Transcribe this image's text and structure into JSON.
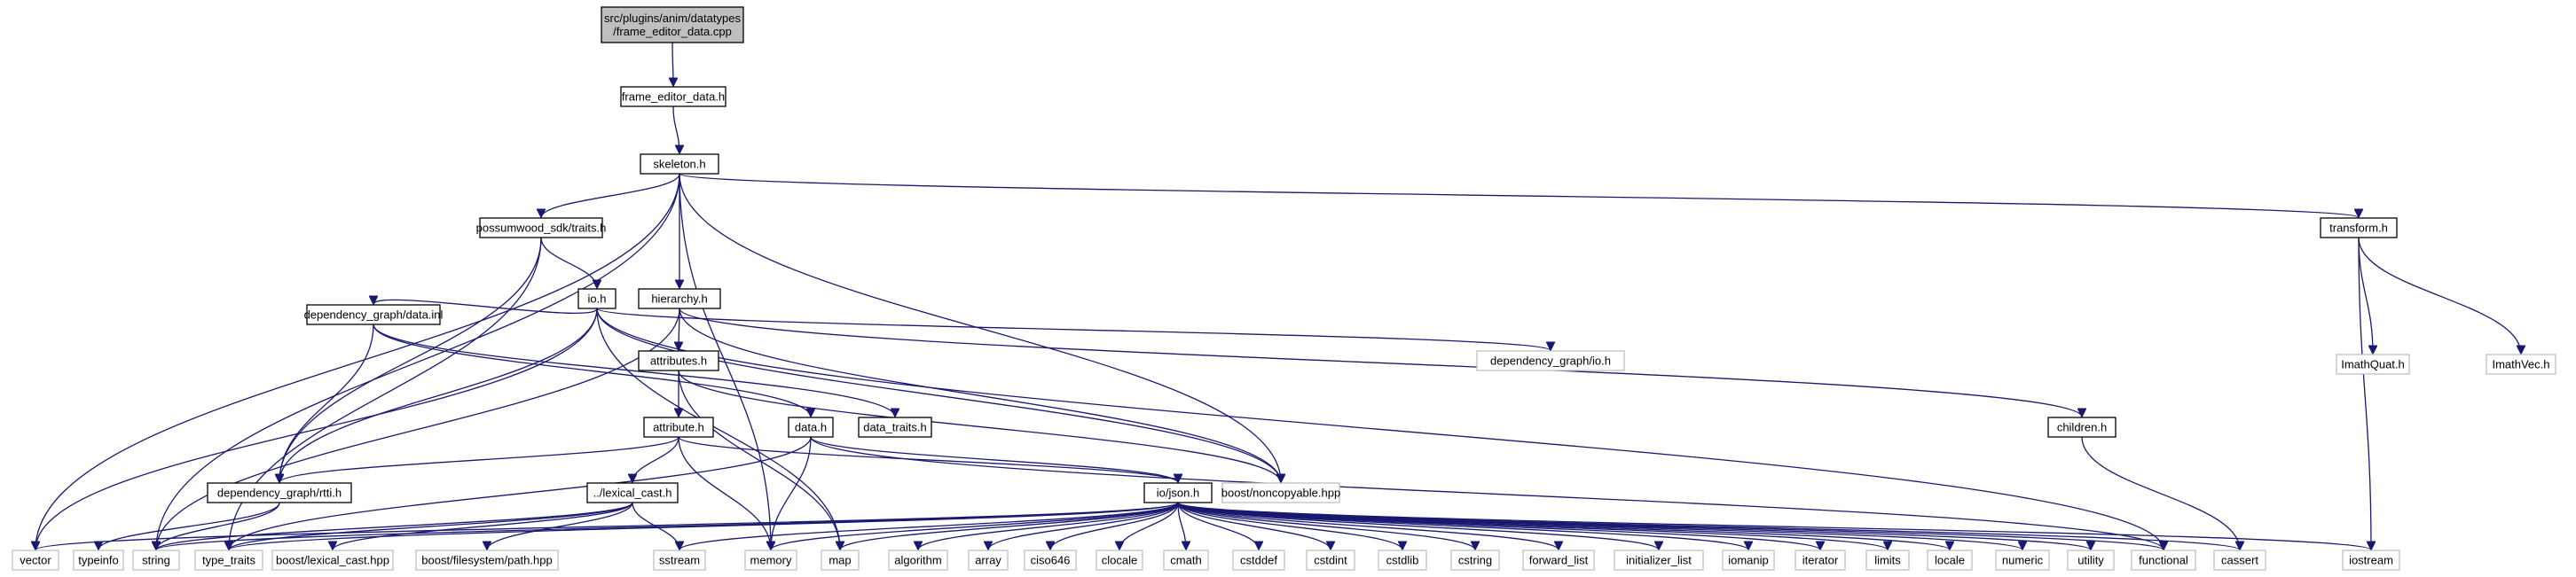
{
  "colors": {
    "edge": "#191970",
    "root_fill": "#bfbfbf",
    "external_stroke": "#bfbfbf",
    "internal_stroke": "#000000"
  },
  "nodes": [
    {
      "id": "root",
      "kind": "root",
      "lines": [
        "src/plugins/anim/datatypes",
        "/frame_editor_data.cpp"
      ]
    },
    {
      "id": "frame_editor_data_h",
      "kind": "internal",
      "lines": [
        "frame_editor_data.h"
      ]
    },
    {
      "id": "skeleton_h",
      "kind": "internal",
      "lines": [
        "skeleton.h"
      ]
    },
    {
      "id": "possumwood_sdk_traits_h",
      "kind": "internal",
      "lines": [
        "possumwood_sdk/traits.h"
      ]
    },
    {
      "id": "transform_h",
      "kind": "internal",
      "lines": [
        "transform.h"
      ]
    },
    {
      "id": "io_h",
      "kind": "internal",
      "lines": [
        "io.h"
      ]
    },
    {
      "id": "hierarchy_h",
      "kind": "internal",
      "lines": [
        "hierarchy.h"
      ]
    },
    {
      "id": "imath_quat_h",
      "kind": "external",
      "lines": [
        "ImathQuat.h"
      ]
    },
    {
      "id": "imath_vec_h",
      "kind": "external",
      "lines": [
        "ImathVec.h"
      ]
    },
    {
      "id": "dependency_graph_data_inl",
      "kind": "internal",
      "lines": [
        "dependency_graph/data.inl"
      ]
    },
    {
      "id": "dependency_graph_io_h",
      "kind": "external",
      "lines": [
        "dependency_graph/io.h"
      ]
    },
    {
      "id": "attributes_h",
      "kind": "internal",
      "lines": [
        "attributes.h"
      ]
    },
    {
      "id": "data_traits_h",
      "kind": "internal",
      "lines": [
        "data_traits.h"
      ]
    },
    {
      "id": "attribute_h",
      "kind": "internal",
      "lines": [
        "attribute.h"
      ]
    },
    {
      "id": "data_h",
      "kind": "internal",
      "lines": [
        "data.h"
      ]
    },
    {
      "id": "children_h",
      "kind": "internal",
      "lines": [
        "children.h"
      ]
    },
    {
      "id": "dependency_graph_rtti_h",
      "kind": "internal",
      "lines": [
        "dependency_graph/rtti.h"
      ]
    },
    {
      "id": "lexical_cast_h",
      "kind": "internal",
      "lines": [
        "../lexical_cast.h"
      ]
    },
    {
      "id": "boost_noncopyable_hpp",
      "kind": "external",
      "lines": [
        "boost/noncopyable.hpp"
      ]
    },
    {
      "id": "io_json_h",
      "kind": "internal",
      "lines": [
        "io/json.h"
      ]
    },
    {
      "id": "vector",
      "kind": "external",
      "lines": [
        "vector"
      ]
    },
    {
      "id": "typeinfo",
      "kind": "external",
      "lines": [
        "typeinfo"
      ]
    },
    {
      "id": "string",
      "kind": "external",
      "lines": [
        "string"
      ]
    },
    {
      "id": "type_traits",
      "kind": "external",
      "lines": [
        "type_traits"
      ]
    },
    {
      "id": "boost_lexical_cast_hpp",
      "kind": "external",
      "lines": [
        "boost/lexical_cast.hpp"
      ]
    },
    {
      "id": "boost_filesystem_path_hpp",
      "kind": "external",
      "lines": [
        "boost/filesystem/path.hpp"
      ]
    },
    {
      "id": "sstream",
      "kind": "external",
      "lines": [
        "sstream"
      ]
    },
    {
      "id": "memory",
      "kind": "external",
      "lines": [
        "memory"
      ]
    },
    {
      "id": "map",
      "kind": "external",
      "lines": [
        "map"
      ]
    },
    {
      "id": "algorithm",
      "kind": "external",
      "lines": [
        "algorithm"
      ]
    },
    {
      "id": "array",
      "kind": "external",
      "lines": [
        "array"
      ]
    },
    {
      "id": "ciso646",
      "kind": "external",
      "lines": [
        "ciso646"
      ]
    },
    {
      "id": "clocale",
      "kind": "external",
      "lines": [
        "clocale"
      ]
    },
    {
      "id": "cmath",
      "kind": "external",
      "lines": [
        "cmath"
      ]
    },
    {
      "id": "cstddef",
      "kind": "external",
      "lines": [
        "cstddef"
      ]
    },
    {
      "id": "cstdint",
      "kind": "external",
      "lines": [
        "cstdint"
      ]
    },
    {
      "id": "cstdlib",
      "kind": "external",
      "lines": [
        "cstdlib"
      ]
    },
    {
      "id": "cstring",
      "kind": "external",
      "lines": [
        "cstring"
      ]
    },
    {
      "id": "forward_list",
      "kind": "external",
      "lines": [
        "forward_list"
      ]
    },
    {
      "id": "initializer_list",
      "kind": "external",
      "lines": [
        "initializer_list"
      ]
    },
    {
      "id": "iomanip",
      "kind": "external",
      "lines": [
        "iomanip"
      ]
    },
    {
      "id": "iterator",
      "kind": "external",
      "lines": [
        "iterator"
      ]
    },
    {
      "id": "limits",
      "kind": "external",
      "lines": [
        "limits"
      ]
    },
    {
      "id": "locale",
      "kind": "external",
      "lines": [
        "locale"
      ]
    },
    {
      "id": "numeric",
      "kind": "external",
      "lines": [
        "numeric"
      ]
    },
    {
      "id": "utility",
      "kind": "external",
      "lines": [
        "utility"
      ]
    },
    {
      "id": "functional",
      "kind": "external",
      "lines": [
        "functional"
      ]
    },
    {
      "id": "cassert",
      "kind": "external",
      "lines": [
        "cassert"
      ]
    },
    {
      "id": "iostream",
      "kind": "external",
      "lines": [
        "iostream"
      ]
    }
  ],
  "edges": [
    [
      "root",
      "frame_editor_data_h"
    ],
    [
      "frame_editor_data_h",
      "skeleton_h"
    ],
    [
      "skeleton_h",
      "possumwood_sdk_traits_h"
    ],
    [
      "skeleton_h",
      "transform_h"
    ],
    [
      "skeleton_h",
      "hierarchy_h"
    ],
    [
      "skeleton_h",
      "vector"
    ],
    [
      "skeleton_h",
      "string"
    ],
    [
      "skeleton_h",
      "memory"
    ],
    [
      "skeleton_h",
      "boost_noncopyable_hpp"
    ],
    [
      "possumwood_sdk_traits_h",
      "io_h"
    ],
    [
      "possumwood_sdk_traits_h",
      "dependency_graph_rtti_h"
    ],
    [
      "possumwood_sdk_traits_h",
      "type_traits"
    ],
    [
      "transform_h",
      "imath_quat_h"
    ],
    [
      "transform_h",
      "imath_vec_h"
    ],
    [
      "transform_h",
      "iostream"
    ],
    [
      "io_h",
      "dependency_graph_data_inl"
    ],
    [
      "io_h",
      "dependency_graph_io_h"
    ],
    [
      "io_h",
      "dependency_graph_rtti_h"
    ],
    [
      "io_h",
      "boost_noncopyable_hpp"
    ],
    [
      "io_h",
      "vector"
    ],
    [
      "io_h",
      "functional"
    ],
    [
      "io_h",
      "map"
    ],
    [
      "hierarchy_h",
      "attributes_h"
    ],
    [
      "hierarchy_h",
      "children_h"
    ],
    [
      "hierarchy_h",
      "boost_noncopyable_hpp"
    ],
    [
      "hierarchy_h",
      "string"
    ],
    [
      "dependency_graph_data_inl",
      "data_h"
    ],
    [
      "dependency_graph_data_inl",
      "data_traits_h"
    ],
    [
      "dependency_graph_data_inl",
      "dependency_graph_rtti_h"
    ],
    [
      "attributes_h",
      "attribute_h"
    ],
    [
      "attributes_h",
      "map"
    ],
    [
      "attributes_h",
      "boost_noncopyable_hpp"
    ],
    [
      "attribute_h",
      "lexical_cast_h"
    ],
    [
      "attribute_h",
      "dependency_graph_rtti_h"
    ],
    [
      "attribute_h",
      "memory"
    ],
    [
      "attribute_h",
      "io_json_h"
    ],
    [
      "data_h",
      "io_json_h"
    ],
    [
      "data_h",
      "memory"
    ],
    [
      "data_h",
      "type_traits"
    ],
    [
      "data_h",
      "functional"
    ],
    [
      "children_h",
      "cassert"
    ],
    [
      "dependency_graph_rtti_h",
      "typeinfo"
    ],
    [
      "dependency_graph_rtti_h",
      "string"
    ],
    [
      "lexical_cast_h",
      "string"
    ],
    [
      "lexical_cast_h",
      "type_traits"
    ],
    [
      "lexical_cast_h",
      "boost_lexical_cast_hpp"
    ],
    [
      "lexical_cast_h",
      "boost_filesystem_path_hpp"
    ],
    [
      "lexical_cast_h",
      "sstream"
    ],
    [
      "io_json_h",
      "vector"
    ],
    [
      "io_json_h",
      "string"
    ],
    [
      "io_json_h",
      "type_traits"
    ],
    [
      "io_json_h",
      "sstream"
    ],
    [
      "io_json_h",
      "memory"
    ],
    [
      "io_json_h",
      "map"
    ],
    [
      "io_json_h",
      "algorithm"
    ],
    [
      "io_json_h",
      "array"
    ],
    [
      "io_json_h",
      "ciso646"
    ],
    [
      "io_json_h",
      "clocale"
    ],
    [
      "io_json_h",
      "cmath"
    ],
    [
      "io_json_h",
      "cstddef"
    ],
    [
      "io_json_h",
      "cstdint"
    ],
    [
      "io_json_h",
      "cstdlib"
    ],
    [
      "io_json_h",
      "cstring"
    ],
    [
      "io_json_h",
      "forward_list"
    ],
    [
      "io_json_h",
      "initializer_list"
    ],
    [
      "io_json_h",
      "iomanip"
    ],
    [
      "io_json_h",
      "iterator"
    ],
    [
      "io_json_h",
      "limits"
    ],
    [
      "io_json_h",
      "locale"
    ],
    [
      "io_json_h",
      "numeric"
    ],
    [
      "io_json_h",
      "utility"
    ],
    [
      "io_json_h",
      "functional"
    ],
    [
      "io_json_h",
      "cassert"
    ],
    [
      "io_json_h",
      "iostream"
    ]
  ]
}
